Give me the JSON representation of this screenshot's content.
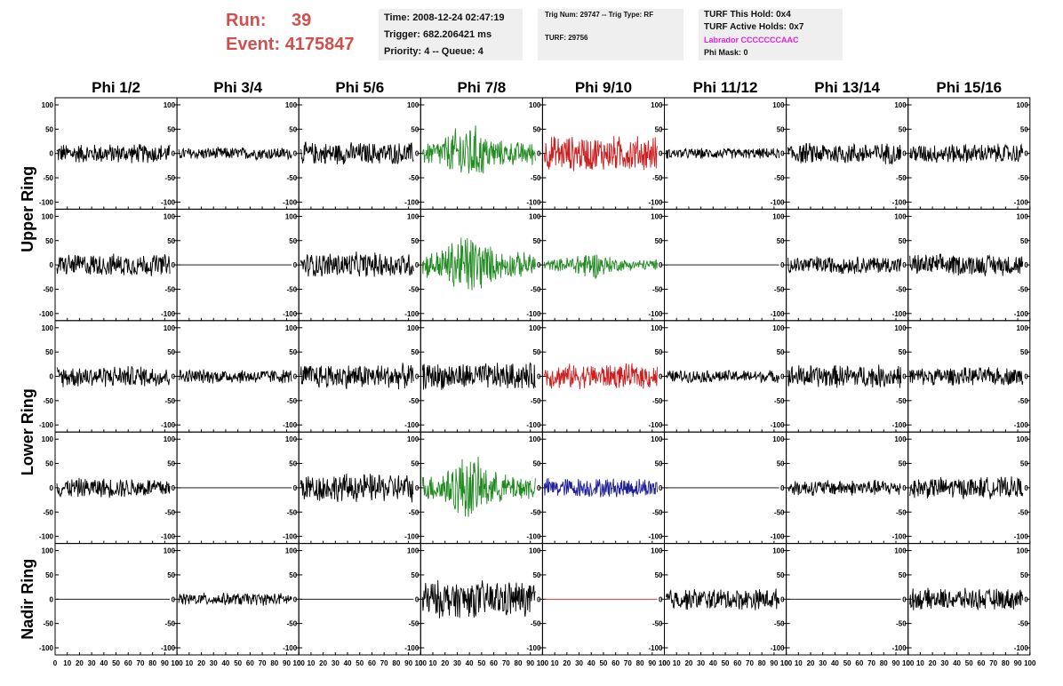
{
  "header": {
    "run_label": "Run:",
    "run_value": "39",
    "event_label": "Event:",
    "event_value": "4175847"
  },
  "info_time": {
    "time": "Time: 2008-12-24 02:47:19",
    "trigger": "Trigger: 682.206421 ms",
    "priority": "Priority: 4 -- Queue: 4"
  },
  "info_trig": {
    "trig": "Trig Num: 29747 -- Trig Type: RF",
    "turf": "TURF: 29756"
  },
  "info_turf": {
    "this_hold": "TURF This Hold: 0x4",
    "active_holds": "TURF Active Holds: 0x7",
    "labrador": "Labrador CCCCCCCAAC",
    "phi_mask": "Phi Mask: 0"
  },
  "colors": {
    "black": "#000000",
    "green": "#1f8a1f",
    "red": "#cc1f1f",
    "blue": "#1f1f99",
    "run_text": "#d0504e",
    "labrador": "#e020e0"
  },
  "chart_data": {
    "type": "line",
    "columns": [
      "Phi 1/2",
      "Phi 3/4",
      "Phi 5/6",
      "Phi 7/8",
      "Phi 9/10",
      "Phi 11/12",
      "Phi 13/14",
      "Phi 15/16"
    ],
    "rows": [
      "Upper Ring",
      "Lower Ring",
      "Nadir Ring"
    ],
    "xlim": [
      0,
      100
    ],
    "ylim": [
      -100,
      100
    ],
    "x_ticks": [
      0,
      10,
      20,
      30,
      40,
      50,
      60,
      70,
      80,
      90,
      100
    ],
    "y_ticks": [
      100,
      50,
      0,
      -50,
      -100
    ],
    "panels": [
      [
        {
          "color": "black",
          "amp": 22
        },
        {
          "color": "black",
          "amp": 14
        },
        {
          "color": "black",
          "amp": 25
        },
        {
          "color": "green",
          "amp": 48
        },
        {
          "color": "red",
          "amp": 40
        },
        {
          "color": "black",
          "amp": 12
        },
        {
          "color": "black",
          "amp": 24
        },
        {
          "color": "black",
          "amp": 22
        }
      ],
      [
        {
          "color": "black",
          "amp": 25
        },
        {
          "color": "black",
          "amp": 0
        },
        {
          "color": "black",
          "amp": 28
        },
        {
          "color": "green",
          "amp": 52
        },
        {
          "color": "green",
          "amp": 22
        },
        {
          "color": "black",
          "amp": 0
        },
        {
          "color": "black",
          "amp": 20
        },
        {
          "color": "black",
          "amp": 24
        }
      ],
      [
        {
          "color": "black",
          "amp": 24
        },
        {
          "color": "black",
          "amp": 16
        },
        {
          "color": "black",
          "amp": 28
        },
        {
          "color": "black",
          "amp": 30
        },
        {
          "color": "red",
          "amp": 28
        },
        {
          "color": "black",
          "amp": 14
        },
        {
          "color": "black",
          "amp": 26
        },
        {
          "color": "black",
          "amp": 20
        }
      ],
      [
        {
          "color": "black",
          "amp": 22
        },
        {
          "color": "black",
          "amp": 0
        },
        {
          "color": "black",
          "amp": 32
        },
        {
          "color": "green",
          "amp": 52
        },
        {
          "color": "blue",
          "amp": 22
        },
        {
          "color": "black",
          "amp": 0
        },
        {
          "color": "black",
          "amp": 18
        },
        {
          "color": "black",
          "amp": 24
        }
      ],
      [
        {
          "color": "black",
          "amp": 0
        },
        {
          "color": "black",
          "amp": 14
        },
        {
          "color": "black",
          "amp": 0
        },
        {
          "color": "black",
          "amp": 42
        },
        {
          "color": "red",
          "amp": 0
        },
        {
          "color": "black",
          "amp": 24
        },
        {
          "color": "black",
          "amp": 0
        },
        {
          "color": "black",
          "amp": 24
        }
      ]
    ]
  }
}
